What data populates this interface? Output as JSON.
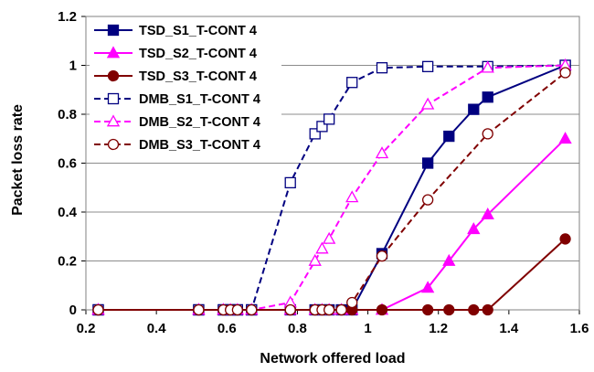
{
  "chart_data": {
    "type": "line",
    "xlabel": "Network offered load",
    "ylabel": "Packet loss rate",
    "xlim": [
      0.2,
      1.6
    ],
    "ylim": [
      0,
      1.2
    ],
    "x_ticks": [
      "0.2",
      "0.4",
      "0.6",
      "0.8",
      "1",
      "1.2",
      "1.4",
      "1.6"
    ],
    "y_ticks": [
      "0",
      "0.2",
      "0.4",
      "0.6",
      "0.8",
      "1",
      "1.2"
    ],
    "grid": "horizontal",
    "legend_position": "top-left",
    "series": [
      {
        "name": "TSD_S1_T-CONT 4",
        "color": "#000080",
        "line": "solid",
        "marker": "square",
        "filled": true,
        "points": [
          [
            0.235,
            0
          ],
          [
            0.52,
            0
          ],
          [
            0.59,
            0
          ],
          [
            0.61,
            0
          ],
          [
            0.63,
            0
          ],
          [
            0.67,
            0
          ],
          [
            0.78,
            0
          ],
          [
            0.85,
            0
          ],
          [
            0.87,
            0
          ],
          [
            0.89,
            0
          ],
          [
            0.925,
            0
          ],
          [
            0.955,
            0
          ],
          [
            1.04,
            0.23
          ],
          [
            1.17,
            0.6
          ],
          [
            1.23,
            0.71
          ],
          [
            1.3,
            0.82
          ],
          [
            1.34,
            0.87
          ],
          [
            1.56,
            1.0
          ]
        ]
      },
      {
        "name": "TSD_S2_T-CONT 4",
        "color": "#ff00ff",
        "line": "solid",
        "marker": "triangle",
        "filled": true,
        "points": [
          [
            0.235,
            0
          ],
          [
            0.52,
            0
          ],
          [
            0.59,
            0
          ],
          [
            0.61,
            0
          ],
          [
            0.63,
            0
          ],
          [
            0.67,
            0
          ],
          [
            0.78,
            0
          ],
          [
            0.85,
            0
          ],
          [
            0.87,
            0
          ],
          [
            0.89,
            0
          ],
          [
            0.925,
            0
          ],
          [
            0.955,
            0
          ],
          [
            1.04,
            0
          ],
          [
            1.17,
            0.09
          ],
          [
            1.23,
            0.2
          ],
          [
            1.3,
            0.33
          ],
          [
            1.34,
            0.39
          ],
          [
            1.56,
            0.7
          ]
        ]
      },
      {
        "name": "TSD_S3_T-CONT 4",
        "color": "#800000",
        "line": "solid",
        "marker": "circle",
        "filled": true,
        "points": [
          [
            0.235,
            0
          ],
          [
            0.52,
            0
          ],
          [
            0.59,
            0
          ],
          [
            0.61,
            0
          ],
          [
            0.63,
            0
          ],
          [
            0.67,
            0
          ],
          [
            0.78,
            0
          ],
          [
            0.85,
            0
          ],
          [
            0.87,
            0
          ],
          [
            0.89,
            0
          ],
          [
            0.925,
            0
          ],
          [
            0.955,
            0
          ],
          [
            1.04,
            0
          ],
          [
            1.17,
            0
          ],
          [
            1.23,
            0
          ],
          [
            1.3,
            0
          ],
          [
            1.34,
            0
          ],
          [
            1.56,
            0.29
          ]
        ]
      },
      {
        "name": "DMB_S1_T-CONT 4",
        "color": "#000080",
        "line": "dashed",
        "marker": "square",
        "filled": false,
        "points": [
          [
            0.235,
            0
          ],
          [
            0.52,
            0
          ],
          [
            0.59,
            0
          ],
          [
            0.61,
            0
          ],
          [
            0.63,
            0
          ],
          [
            0.67,
            0
          ],
          [
            0.78,
            0.52
          ],
          [
            0.85,
            0.72
          ],
          [
            0.87,
            0.75
          ],
          [
            0.89,
            0.78
          ],
          [
            0.955,
            0.93
          ],
          [
            1.04,
            0.99
          ],
          [
            1.17,
            0.995
          ],
          [
            1.34,
            0.995
          ],
          [
            1.56,
            1.0
          ]
        ]
      },
      {
        "name": "DMB_S2_T-CONT 4",
        "color": "#ff00ff",
        "line": "dashed",
        "marker": "triangle",
        "filled": false,
        "points": [
          [
            0.235,
            0
          ],
          [
            0.52,
            0
          ],
          [
            0.59,
            0
          ],
          [
            0.61,
            0
          ],
          [
            0.63,
            0
          ],
          [
            0.67,
            0
          ],
          [
            0.78,
            0.03
          ],
          [
            0.85,
            0.2
          ],
          [
            0.87,
            0.25
          ],
          [
            0.89,
            0.29
          ],
          [
            0.955,
            0.46
          ],
          [
            1.04,
            0.64
          ],
          [
            1.17,
            0.84
          ],
          [
            1.34,
            0.99
          ],
          [
            1.56,
            1.0
          ]
        ]
      },
      {
        "name": "DMB_S3_T-CONT 4",
        "color": "#800000",
        "line": "dashed",
        "marker": "circle",
        "filled": false,
        "points": [
          [
            0.235,
            0
          ],
          [
            0.52,
            0
          ],
          [
            0.59,
            0
          ],
          [
            0.61,
            0
          ],
          [
            0.63,
            0
          ],
          [
            0.67,
            0
          ],
          [
            0.78,
            0
          ],
          [
            0.85,
            0
          ],
          [
            0.87,
            0
          ],
          [
            0.89,
            0
          ],
          [
            0.925,
            0
          ],
          [
            0.955,
            0.03
          ],
          [
            1.04,
            0.22
          ],
          [
            1.17,
            0.45
          ],
          [
            1.34,
            0.72
          ],
          [
            1.56,
            0.97
          ]
        ]
      }
    ]
  }
}
